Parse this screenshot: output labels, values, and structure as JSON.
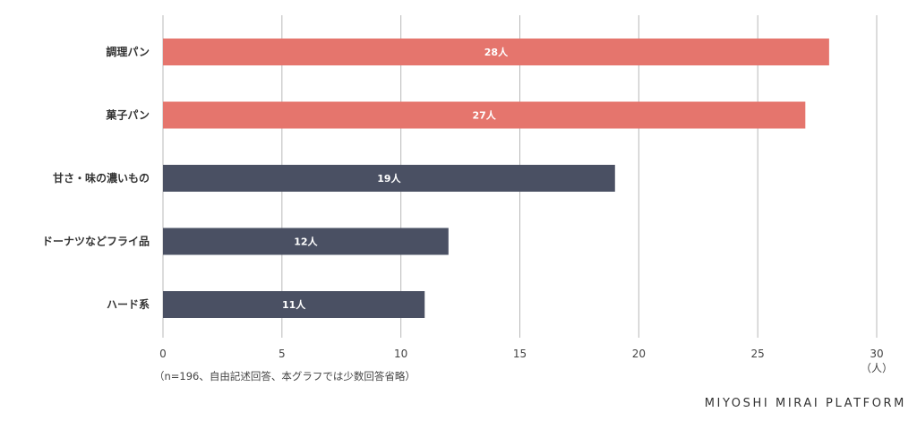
{
  "chart_data": {
    "type": "bar",
    "orientation": "horizontal",
    "categories": [
      "調理パン",
      "菓子パン",
      "甘さ・味の濃いもの",
      "ドーナツなどフライ品",
      "ハード系"
    ],
    "values": [
      28,
      27,
      19,
      12,
      11
    ],
    "value_labels": [
      "28人",
      "27人",
      "19人",
      "12人",
      "11人"
    ],
    "bar_colors": [
      "#e5756d",
      "#e5756d",
      "#4a5063",
      "#4a5063",
      "#4a5063"
    ],
    "xlim": [
      0,
      30
    ],
    "x_ticks": [
      0,
      5,
      10,
      15,
      20,
      25,
      30
    ],
    "x_tick_labels": [
      "0",
      "5",
      "10",
      "15",
      "20",
      "25",
      "30"
    ],
    "x_unit": "（人）",
    "grid": true,
    "note": "（n=196、自由記述回答、本グラフでは少数回答省略）"
  },
  "branding": {
    "text": "MIYOSHI MIRAI PLATFORM"
  }
}
